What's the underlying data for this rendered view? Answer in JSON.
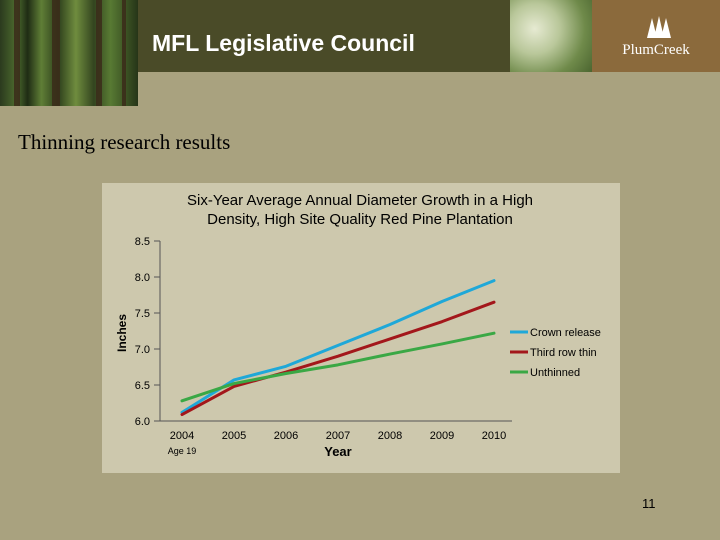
{
  "header": {
    "title": "MFL Legislative Council",
    "logo_text": "PlumCreek"
  },
  "slide": {
    "subtitle": "Thinning research results",
    "page_number": "11"
  },
  "chart_data": {
    "type": "line",
    "title_lines": [
      "Six-Year Average Annual Diameter Growth in a High",
      "Density, High Site Quality Red Pine Plantation"
    ],
    "xlabel": "Year",
    "ylabel": "Inches",
    "x": [
      2004,
      2005,
      2006,
      2007,
      2008,
      2009,
      2010
    ],
    "x_tick_labels": [
      "2004",
      "2005",
      "2006",
      "2007",
      "2008",
      "2009",
      "2010"
    ],
    "x_sub_label": "Age 19",
    "y_ticks": [
      "8.5",
      "8.0",
      "7.5",
      "7.0",
      "6.5",
      "6.0"
    ],
    "ylim": [
      6.0,
      8.5
    ],
    "grid": false,
    "legend_position": "right",
    "series": [
      {
        "name": "Crown release",
        "color": "#1fa8d8",
        "values": [
          6.12,
          6.57,
          6.76,
          7.05,
          7.34,
          7.66,
          7.95
        ]
      },
      {
        "name": "Third row thin",
        "color": "#a3171b",
        "values": [
          6.09,
          6.48,
          6.68,
          6.9,
          7.14,
          7.38,
          7.65
        ]
      },
      {
        "name": "Unthinned",
        "color": "#3aa845",
        "values": [
          6.28,
          6.52,
          6.66,
          6.78,
          6.93,
          7.07,
          7.22
        ]
      }
    ]
  }
}
